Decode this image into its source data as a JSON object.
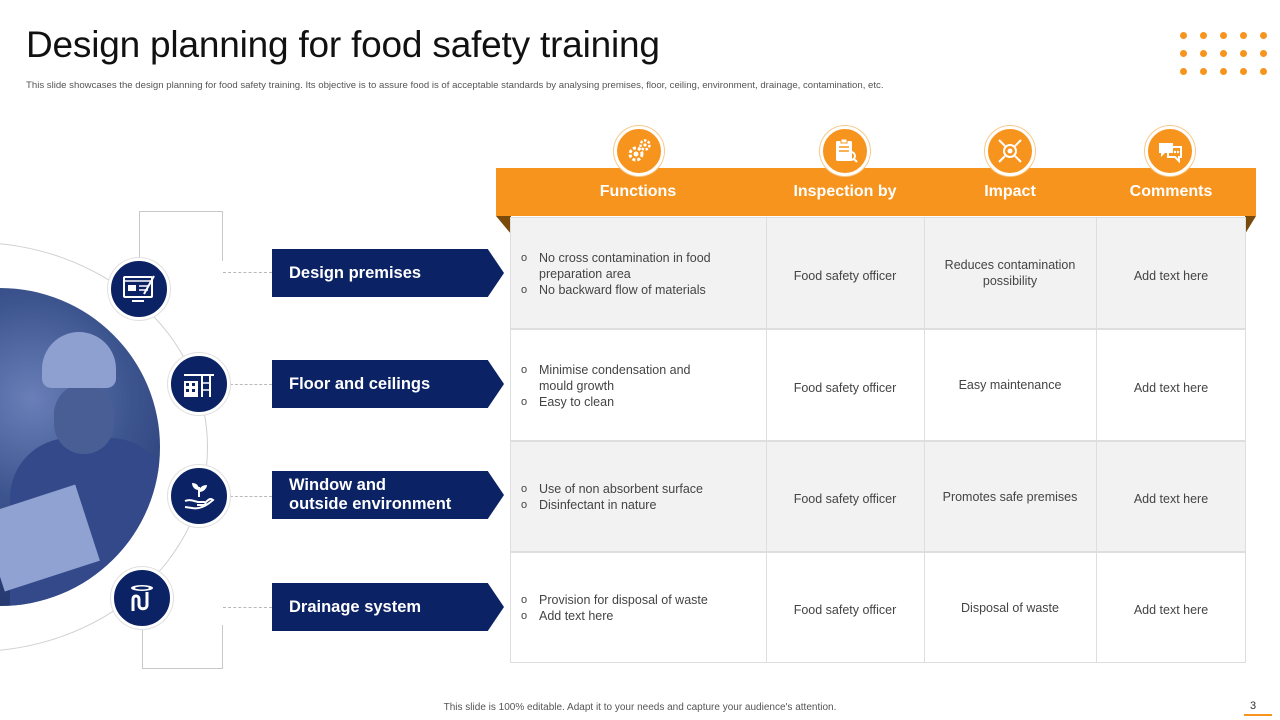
{
  "title": "Design planning for food safety training",
  "subtitle": "This slide showcases the design planning for food safety training. Its objective is to assure food is of acceptable standards by analysing premises, floor, ceiling, environment, drainage, contamination, etc.",
  "colors": {
    "accent": "#f7941d",
    "navy": "#0b2265",
    "row_shade": "#f2f2f2"
  },
  "columns": [
    {
      "label": "Functions",
      "icon": "gears-icon"
    },
    {
      "label": "Inspection by",
      "icon": "clipboard-inspection-icon"
    },
    {
      "label": "Impact",
      "icon": "target-impact-icon"
    },
    {
      "label": "Comments",
      "icon": "chat-bubbles-icon"
    }
  ],
  "rows": [
    {
      "label": "Design premises",
      "icon": "design-monitor-icon",
      "functions": [
        "No cross contamination in food preparation  area",
        "No backward flow of materials"
      ],
      "inspection": "Food safety officer",
      "impact": "Reduces contamination possibility",
      "comments": "Add text here"
    },
    {
      "label": "Floor and ceilings",
      "icon": "building-floor-icon",
      "functions": [
        "Minimise condensation  and mould growth",
        "Easy to clean"
      ],
      "inspection": "Food safety officer",
      "impact": "Easy maintenance",
      "comments": "Add text here"
    },
    {
      "label": "Window and outside environment",
      "label_line1": "Window and",
      "label_line2": "outside environment",
      "icon": "plant-in-hand-icon",
      "functions": [
        "Use of non absorbent surface",
        "Disinfectant in nature"
      ],
      "inspection": "Food safety officer",
      "impact": "Promotes safe premises",
      "comments": "Add text here"
    },
    {
      "label": "Drainage system",
      "icon": "drain-pipe-icon",
      "functions": [
        "Provision for disposal of waste",
        "Add text here"
      ],
      "inspection": "Food safety officer",
      "impact": "Disposal of waste",
      "comments": "Add text here"
    }
  ],
  "footer": "This slide is 100% editable. Adapt it to your needs and capture your audience's attention.",
  "page_number": "3"
}
